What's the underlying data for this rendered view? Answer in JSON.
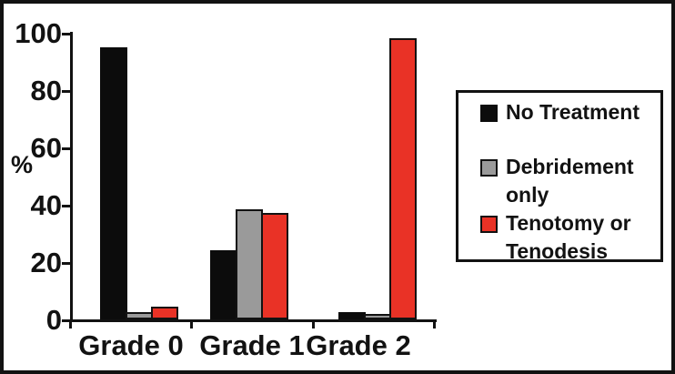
{
  "chart_data": {
    "type": "bar",
    "title": "",
    "xlabel": "",
    "ylabel": "%",
    "ylim": [
      0,
      100
    ],
    "yticks": [
      100,
      80,
      60,
      40,
      20,
      0
    ],
    "grid": false,
    "legend_position": "right",
    "categories": [
      "Grade 0",
      "Grade 1",
      "Grade 2"
    ],
    "series": [
      {
        "name": "No Treatment",
        "color": "#0c0c0c",
        "values": [
          95,
          24,
          2.5
        ]
      },
      {
        "name": "Debridement only",
        "color": "#9a9a9a",
        "values": [
          2.5,
          38.5,
          2
        ]
      },
      {
        "name": "Tenotomy or Tenodesis",
        "color": "#e93226",
        "values": [
          4.5,
          37,
          98
        ]
      }
    ]
  },
  "legend": {
    "items": [
      {
        "label": "No Treatment",
        "color": "#0c0c0c"
      },
      {
        "label": "Debridement only",
        "color": "#9a9a9a"
      },
      {
        "label": "Tenotomy or Tenodesis",
        "color": "#e93226"
      }
    ]
  }
}
